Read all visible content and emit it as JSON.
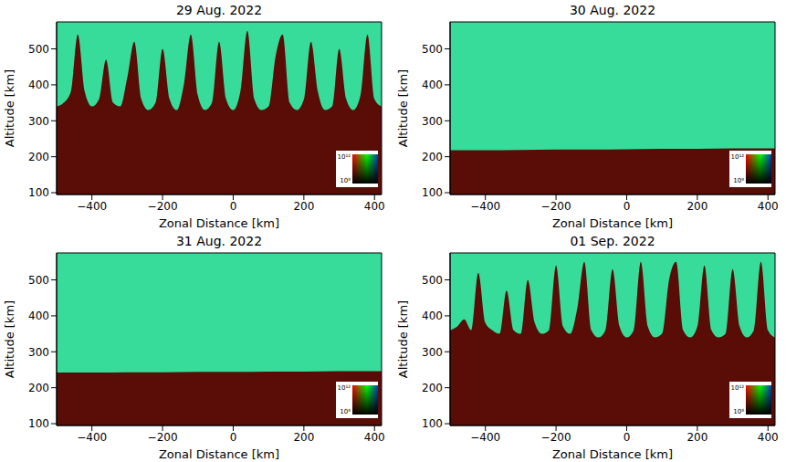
{
  "chart_data": [
    {
      "type": "area",
      "title": "29 Aug. 2022",
      "x_label": "Zonal Distance [km]",
      "y_label": "Altitude [km]",
      "color": "#38dc9a",
      "x": [
        -500,
        -480,
        -460,
        -440,
        -420,
        -400,
        -380,
        -360,
        -340,
        -320,
        -300,
        -280,
        -260,
        -240,
        -220,
        -200,
        -180,
        -160,
        -140,
        -120,
        -100,
        -80,
        -60,
        -40,
        -20,
        0,
        20,
        40,
        60,
        80,
        100,
        120,
        140,
        160,
        180,
        200,
        220,
        240,
        260,
        280,
        300,
        320,
        340,
        360,
        380,
        400,
        420
      ],
      "series": [
        {
          "color": "#5a0c07",
          "values": [
            340,
            350,
            380,
            540,
            380,
            340,
            360,
            470,
            350,
            340,
            420,
            520,
            360,
            330,
            350,
            500,
            360,
            330,
            400,
            540,
            370,
            330,
            350,
            520,
            360,
            330,
            380,
            550,
            360,
            330,
            340,
            480,
            540,
            350,
            330,
            360,
            520,
            380,
            330,
            340,
            500,
            360,
            330,
            370,
            540,
            360,
            340
          ]
        }
      ],
      "xlim": [
        -500,
        420
      ],
      "ylim": [
        95,
        575
      ],
      "xticks": [
        {
          "value": -400,
          "label": "−400"
        },
        {
          "value": -200,
          "label": "−200"
        },
        0,
        200,
        400
      ],
      "yticks": [
        100,
        200,
        300,
        400,
        500
      ],
      "colorbar": {
        "range": [
          100000000,
          1000000000000
        ],
        "ticks": [
          {
            "value": 1000000000000,
            "label": "10¹²"
          },
          {
            "value": 100000000,
            "label": "10⁸"
          }
        ]
      }
    },
    {
      "type": "area",
      "title": "30 Aug. 2022",
      "x_label": "Zonal Distance [km]",
      "y_label": "Altitude [km]",
      "color": "#38dc9a",
      "x": [
        -500,
        -400,
        -300,
        -200,
        -100,
        0,
        100,
        200,
        300,
        400,
        420
      ],
      "series": [
        {
          "color": "#5a0c07",
          "values": [
            218,
            218,
            219,
            220,
            220,
            221,
            222,
            222,
            223,
            223,
            223
          ]
        }
      ],
      "xlim": [
        -500,
        420
      ],
      "ylim": [
        95,
        575
      ],
      "xticks": [
        {
          "value": -400,
          "label": "−400"
        },
        {
          "value": -200,
          "label": "−200"
        },
        0,
        200,
        400
      ],
      "yticks": [
        100,
        200,
        300,
        400,
        500
      ],
      "colorbar": {
        "range": [
          100000000,
          1000000000000
        ],
        "ticks": [
          {
            "value": 1000000000000,
            "label": "10¹²"
          },
          {
            "value": 100000000,
            "label": "10⁸"
          }
        ]
      }
    },
    {
      "type": "area",
      "title": "31 Aug. 2022",
      "x_label": "Zonal Distance [km]",
      "y_label": "Altitude [km]",
      "color": "#38dc9a",
      "x": [
        -500,
        -400,
        -300,
        -200,
        -100,
        0,
        100,
        200,
        300,
        400,
        420
      ],
      "series": [
        {
          "color": "#5a0c07",
          "values": [
            242,
            242,
            243,
            243,
            244,
            244,
            245,
            245,
            246,
            246,
            246
          ]
        }
      ],
      "xlim": [
        -500,
        420
      ],
      "ylim": [
        95,
        575
      ],
      "xticks": [
        {
          "value": -400,
          "label": "−400"
        },
        {
          "value": -200,
          "label": "−200"
        },
        0,
        200,
        400
      ],
      "yticks": [
        100,
        200,
        300,
        400,
        500
      ],
      "colorbar": {
        "range": [
          100000000,
          1000000000000
        ],
        "ticks": [
          {
            "value": 1000000000000,
            "label": "10¹²"
          },
          {
            "value": 100000000,
            "label": "10⁸"
          }
        ]
      }
    },
    {
      "type": "area",
      "title": "01 Sep. 2022",
      "x_label": "Zonal Distance [km]",
      "y_label": "Altitude [km]",
      "color": "#38dc9a",
      "x": [
        -500,
        -480,
        -460,
        -440,
        -420,
        -400,
        -380,
        -360,
        -340,
        -320,
        -300,
        -280,
        -260,
        -240,
        -220,
        -200,
        -180,
        -160,
        -140,
        -120,
        -100,
        -80,
        -60,
        -40,
        -20,
        0,
        20,
        40,
        60,
        80,
        100,
        120,
        140,
        160,
        180,
        200,
        220,
        240,
        260,
        280,
        300,
        320,
        340,
        360,
        380,
        400,
        420
      ],
      "series": [
        {
          "color": "#5a0c07",
          "values": [
            360,
            370,
            390,
            360,
            520,
            380,
            360,
            350,
            470,
            360,
            350,
            500,
            380,
            350,
            360,
            540,
            370,
            350,
            420,
            550,
            360,
            340,
            360,
            530,
            370,
            340,
            360,
            550,
            370,
            340,
            350,
            500,
            550,
            360,
            340,
            370,
            540,
            360,
            340,
            350,
            530,
            370,
            340,
            360,
            550,
            360,
            340
          ]
        }
      ],
      "xlim": [
        -500,
        420
      ],
      "ylim": [
        95,
        575
      ],
      "xticks": [
        {
          "value": -400,
          "label": "−400"
        },
        {
          "value": -200,
          "label": "−200"
        },
        0,
        200,
        400
      ],
      "yticks": [
        100,
        200,
        300,
        400,
        500
      ],
      "colorbar": {
        "range": [
          100000000,
          1000000000000
        ],
        "ticks": [
          {
            "value": 1000000000000,
            "label": "10¹²"
          },
          {
            "value": 100000000,
            "label": "10⁸"
          }
        ]
      }
    }
  ]
}
